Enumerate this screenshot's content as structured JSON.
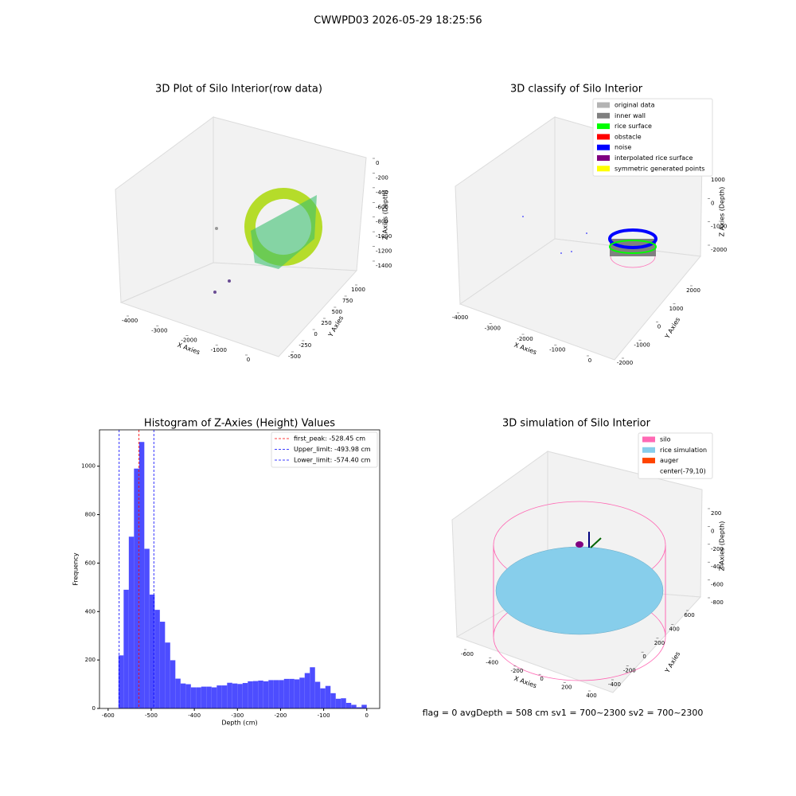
{
  "title": "CWWPD03 2026-05-29 18:25:56",
  "status": "flag = 0     avgDepth = 508 cm  sv1 = 700~2300  sv2 = 700~2300",
  "chart_data": [
    {
      "type": "scatter3d",
      "title": "3D Plot of Silo Interior(row data)",
      "xlabel": "X Axies",
      "ylabel": "Y Axies",
      "zlabel": "Z Axies (Depth)",
      "xticks": [
        -4000,
        -3000,
        -2000,
        -1000,
        0
      ],
      "yticks": [
        -500,
        -250,
        0,
        250,
        500,
        750,
        1000
      ],
      "zticks": [
        0,
        -200,
        -400,
        -600,
        -800,
        -1000,
        -1200,
        -1400
      ]
    },
    {
      "type": "scatter3d",
      "title": "3D classify of Silo Interior",
      "xlabel": "X Axies",
      "ylabel": "Y Axies",
      "zlabel": "Z Axies (Depth)",
      "xticks": [
        -4000,
        -3000,
        -2000,
        -1000,
        0
      ],
      "yticks": [
        -2000,
        -1000,
        0,
        1000,
        2000
      ],
      "zticks": [
        1000,
        0,
        -1000,
        -2000
      ],
      "legend": [
        {
          "name": "original data",
          "color": "#b3b3b3"
        },
        {
          "name": "inner wall",
          "color": "#808080"
        },
        {
          "name": "rice surface",
          "color": "#00ff00"
        },
        {
          "name": "obstacle",
          "color": "#ff0000"
        },
        {
          "name": "noise",
          "color": "#0000ff"
        },
        {
          "name": "interpolated rice surface",
          "color": "#800080"
        },
        {
          "name": "symmetric generated points",
          "color": "#ffff00"
        }
      ]
    },
    {
      "type": "histogram",
      "title": "Histogram of Z-Axies (Height) Values",
      "xlabel": "Depth (cm)",
      "ylabel": "Frequency",
      "color": "#4d4dff",
      "bins": [
        -576,
        -564,
        -552,
        -540,
        -528,
        -516,
        -504,
        -492,
        -480,
        -468,
        -456,
        -444,
        -432,
        -420,
        -408,
        -396,
        -384,
        -372,
        -360,
        -348,
        -336,
        -324,
        -312,
        -300,
        -288,
        -276,
        -264,
        -252,
        -240,
        -228,
        -216,
        -204,
        -192,
        -180,
        -168,
        -156,
        -144,
        -132,
        -120,
        -108,
        -96,
        -84,
        -72,
        -60,
        -48,
        -36,
        -24,
        -12,
        0
      ],
      "counts": [
        219,
        490,
        709,
        990,
        1100,
        659,
        470,
        407,
        358,
        272,
        199,
        123,
        103,
        100,
        87,
        87,
        90,
        90,
        87,
        95,
        95,
        106,
        103,
        101,
        105,
        112,
        113,
        115,
        112,
        117,
        117,
        117,
        122,
        122,
        120,
        127,
        146,
        170,
        110,
        83,
        93,
        63,
        40,
        42,
        23,
        15,
        5,
        15
      ],
      "xlim": [
        -620,
        30
      ],
      "ylim": [
        0,
        1150
      ],
      "xticks": [
        -600,
        -500,
        -400,
        -300,
        -200,
        -100,
        0
      ],
      "yticks": [
        0,
        200,
        400,
        600,
        800,
        1000
      ],
      "lines": [
        {
          "value": -528.45,
          "label": "first_peak: -528.45 cm",
          "color": "#ff0000"
        },
        {
          "value": -493.98,
          "label": "Upper_limit: -493.98 cm",
          "color": "#0000ff"
        },
        {
          "value": -574.4,
          "label": "Lower_limit: -574.40 cm",
          "color": "#0000ff"
        }
      ]
    },
    {
      "type": "scatter3d",
      "title": "3D simulation of Silo Interior",
      "xlabel": "X Axies",
      "ylabel": "Y Axies",
      "zlabel": "Z Axies (Depth)",
      "xticks": [
        -600,
        -400,
        -200,
        0,
        200,
        400
      ],
      "yticks": [
        -400,
        -200,
        0,
        200,
        400,
        600
      ],
      "zticks": [
        200,
        0,
        -200,
        -400,
        -600,
        -800
      ],
      "legend": [
        {
          "name": "silo",
          "color": "#ff69b4"
        },
        {
          "name": "rice simulation",
          "color": "#87ceeb"
        },
        {
          "name": "auger",
          "color": "#ff4500"
        },
        {
          "name": "center(-79,10)",
          "color": "#ffffff"
        }
      ]
    }
  ]
}
